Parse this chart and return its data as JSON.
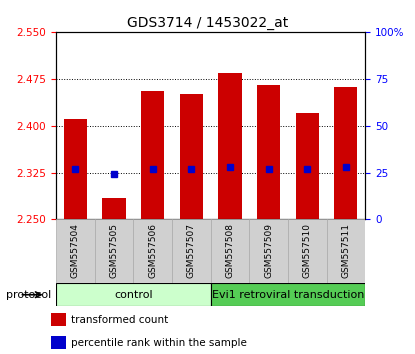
{
  "title": "GDS3714 / 1453022_at",
  "samples": [
    "GSM557504",
    "GSM557505",
    "GSM557506",
    "GSM557507",
    "GSM557508",
    "GSM557509",
    "GSM557510",
    "GSM557511"
  ],
  "bar_values": [
    2.41,
    2.285,
    2.455,
    2.45,
    2.485,
    2.465,
    2.42,
    2.462
  ],
  "percentile_values": [
    27,
    24,
    27,
    27,
    28,
    27,
    27,
    28
  ],
  "bar_bottom": 2.25,
  "ylim_left": [
    2.25,
    2.55
  ],
  "ylim_right": [
    0,
    100
  ],
  "yticks_left": [
    2.25,
    2.325,
    2.4,
    2.475,
    2.55
  ],
  "yticks_right": [
    0,
    25,
    50,
    75,
    100
  ],
  "bar_color": "#cc0000",
  "percentile_color": "#0000cc",
  "control_color": "#ccffcc",
  "treatment_color": "#55cc55",
  "protocol_label": "protocol",
  "control_label": "control",
  "treatment_label": "Evi1 retroviral transduction",
  "control_samples": 4,
  "legend_bar_label": "transformed count",
  "legend_pct_label": "percentile rank within the sample",
  "plot_bg": "#ffffff"
}
